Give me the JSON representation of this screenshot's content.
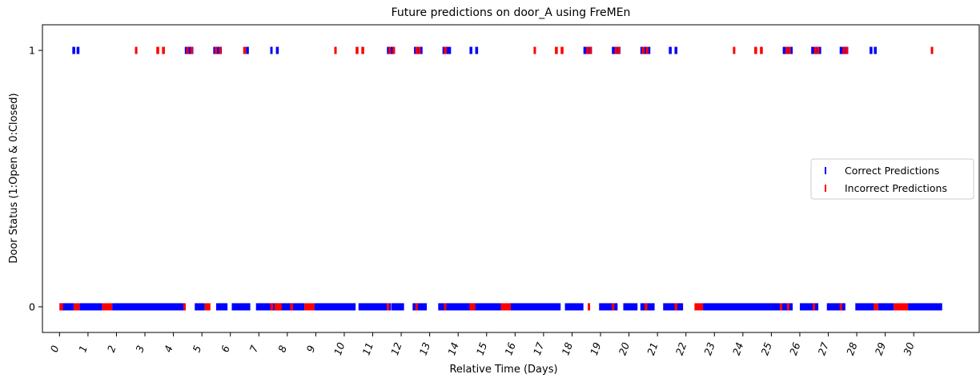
{
  "chart_data": {
    "type": "scatter",
    "title": "Future predictions on door_A using FreMEn",
    "xlabel": "Relative Time (Days)",
    "ylabel": "Door Status (1:Open & 0:Closed)",
    "xlim": [
      -0.6,
      32.3
    ],
    "ylim": [
      -0.1,
      1.1
    ],
    "x_ticks": [
      0,
      1,
      2,
      3,
      4,
      5,
      6,
      7,
      8,
      9,
      10,
      11,
      12,
      13,
      14,
      15,
      16,
      17,
      18,
      19,
      20,
      21,
      22,
      23,
      24,
      25,
      26,
      27,
      28,
      29,
      30
    ],
    "x_tick_labels": [
      "0",
      "1",
      "2",
      "3",
      "4",
      "5",
      "6",
      "7",
      "8",
      "9",
      "10",
      "11",
      "12",
      "13",
      "14",
      "15",
      "16",
      "17",
      "18",
      "19",
      "20",
      "21",
      "22",
      "23",
      "24",
      "25",
      "26",
      "27",
      "28",
      "29",
      "30"
    ],
    "y_ticks": [
      0,
      1
    ],
    "y_tick_labels": [
      "0",
      "1"
    ],
    "legend_position": "center-right",
    "marker": "|",
    "series": [
      {
        "name": "Correct Predictions",
        "color": "#0000ff",
        "segments": [
          {
            "y": 1,
            "ranges": [
              [
                0.45,
                0.55
              ],
              [
                0.6,
                0.7
              ],
              [
                4.4,
                4.7
              ],
              [
                5.4,
                5.7
              ],
              [
                6.55,
                6.65
              ],
              [
                7.4,
                7.47
              ],
              [
                7.6,
                7.7
              ],
              [
                11.5,
                11.75
              ],
              [
                12.45,
                12.75
              ],
              [
                13.45,
                13.75
              ],
              [
                14.4,
                14.5
              ],
              [
                14.6,
                14.7
              ],
              [
                18.4,
                18.7
              ],
              [
                19.4,
                19.7
              ],
              [
                20.4,
                20.75
              ],
              [
                21.4,
                21.5
              ],
              [
                21.6,
                21.7
              ],
              [
                25.4,
                25.75
              ],
              [
                26.4,
                26.75
              ],
              [
                27.4,
                27.7
              ],
              [
                28.45,
                28.55
              ],
              [
                28.6,
                28.7
              ]
            ]
          },
          {
            "y": 0,
            "ranges": [
              [
                0.0,
                0.5
              ],
              [
                0.7,
                1.5
              ],
              [
                1.85,
                4.35
              ],
              [
                4.75,
                5.1
              ],
              [
                5.5,
                5.9
              ],
              [
                6.05,
                6.7
              ],
              [
                6.9,
                8.6
              ],
              [
                8.95,
                10.4
              ],
              [
                10.5,
                11.5
              ],
              [
                11.55,
                11.6
              ],
              [
                11.65,
                12.1
              ],
              [
                12.4,
                12.9
              ],
              [
                13.3,
                15.5
              ],
              [
                15.85,
                17.6
              ],
              [
                17.75,
                18.4
              ],
              [
                18.95,
                19.6
              ],
              [
                19.8,
                20.3
              ],
              [
                20.4,
                20.9
              ],
              [
                21.2,
                21.9
              ],
              [
                22.6,
                25.3
              ],
              [
                25.35,
                25.75
              ],
              [
                26.0,
                26.65
              ],
              [
                26.95,
                27.6
              ],
              [
                27.95,
                28.6
              ],
              [
                28.75,
                29.3
              ],
              [
                29.8,
                31.0
              ]
            ]
          }
        ]
      },
      {
        "name": "Incorrect Predictions",
        "color": "#ff0000",
        "segments": [
          {
            "y": 1,
            "ranges": [
              [
                2.65,
                2.7
              ],
              [
                3.4,
                3.5
              ],
              [
                3.6,
                3.7
              ],
              [
                4.45,
                4.5
              ],
              [
                4.6,
                4.65
              ],
              [
                5.45,
                5.5
              ],
              [
                5.6,
                5.65
              ],
              [
                6.45,
                6.55
              ],
              [
                9.65,
                9.7
              ],
              [
                10.4,
                10.5
              ],
              [
                10.6,
                10.7
              ],
              [
                11.55,
                11.6
              ],
              [
                11.7,
                11.75
              ],
              [
                12.5,
                12.55
              ],
              [
                12.6,
                12.65
              ],
              [
                13.5,
                13.6
              ],
              [
                16.65,
                16.7
              ],
              [
                17.4,
                17.5
              ],
              [
                17.6,
                17.7
              ],
              [
                18.5,
                18.55
              ],
              [
                18.6,
                18.65
              ],
              [
                19.5,
                19.55
              ],
              [
                19.6,
                19.65
              ],
              [
                20.45,
                20.55
              ],
              [
                20.6,
                20.65
              ],
              [
                23.65,
                23.7
              ],
              [
                24.4,
                24.5
              ],
              [
                24.6,
                24.7
              ],
              [
                25.5,
                25.55
              ],
              [
                25.6,
                25.65
              ],
              [
                26.5,
                26.55
              ],
              [
                26.6,
                26.65
              ],
              [
                27.5,
                27.55
              ],
              [
                27.6,
                27.65
              ],
              [
                30.6,
                30.65
              ]
            ]
          },
          {
            "y": 0,
            "ranges": [
              [
                0.0,
                0.12
              ],
              [
                0.5,
                0.7
              ],
              [
                1.5,
                1.85
              ],
              [
                4.35,
                4.4
              ],
              [
                5.1,
                5.3
              ],
              [
                7.4,
                7.5
              ],
              [
                7.55,
                7.8
              ],
              [
                8.1,
                8.2
              ],
              [
                8.6,
                8.95
              ],
              [
                11.5,
                11.55
              ],
              [
                12.5,
                12.55
              ],
              [
                13.5,
                13.55
              ],
              [
                14.4,
                14.6
              ],
              [
                15.5,
                15.85
              ],
              [
                18.55,
                18.6
              ],
              [
                19.4,
                19.45
              ],
              [
                20.55,
                20.65
              ],
              [
                21.6,
                21.7
              ],
              [
                22.3,
                22.6
              ],
              [
                25.3,
                25.35
              ],
              [
                25.55,
                25.6
              ],
              [
                26.45,
                26.5
              ],
              [
                27.4,
                27.45
              ],
              [
                28.6,
                28.75
              ],
              [
                29.3,
                29.8
              ]
            ]
          }
        ]
      }
    ]
  }
}
